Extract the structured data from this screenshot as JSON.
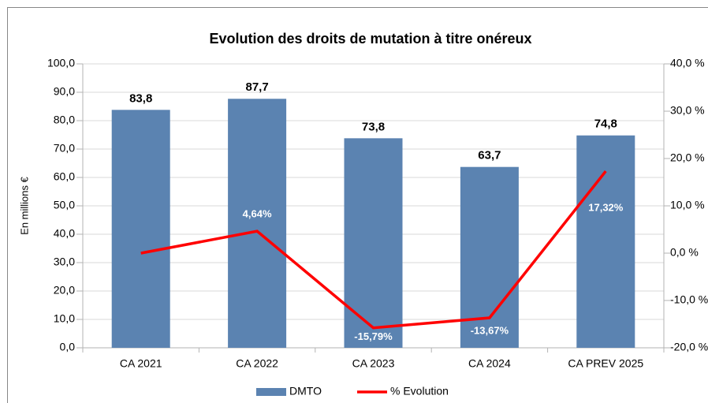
{
  "chart_data": {
    "type": "bar",
    "title": "Evolution des droits de mutation à titre onéreux",
    "y_label": "En millions €",
    "categories": [
      "CA 2021",
      "CA 2022",
      "CA 2023",
      "CA 2024",
      "CA PREV 2025"
    ],
    "series": [
      {
        "name": "DMTO",
        "type": "bar",
        "color": "#5b83b1",
        "values": [
          83.8,
          87.7,
          73.8,
          63.7,
          74.8
        ],
        "value_labels": [
          "83,8",
          "87,7",
          "73,8",
          "63,7",
          "74,8"
        ]
      },
      {
        "name": "% Evolution",
        "type": "line",
        "axis": "y2",
        "color": "#ff0000",
        "values": [
          0,
          4.64,
          -15.79,
          -13.67,
          17.32
        ],
        "value_labels": [
          null,
          "4,64%",
          "-15,79%",
          "-13,67%",
          "17,32%"
        ]
      }
    ],
    "ylim": [
      0,
      100
    ],
    "yticks": [
      {
        "value": 0,
        "label": "0,0"
      },
      {
        "value": 10,
        "label": "10,0"
      },
      {
        "value": 20,
        "label": "20,0"
      },
      {
        "value": 30,
        "label": "30,0"
      },
      {
        "value": 40,
        "label": "40,0"
      },
      {
        "value": 50,
        "label": "50,0"
      },
      {
        "value": 60,
        "label": "60,0"
      },
      {
        "value": 70,
        "label": "70,0"
      },
      {
        "value": 80,
        "label": "80,0"
      },
      {
        "value": 90,
        "label": "90,0"
      },
      {
        "value": 100,
        "label": "100,0"
      }
    ],
    "y2lim": [
      -20,
      40
    ],
    "y2ticks": [
      {
        "value": -20,
        "label": "-20,0 %"
      },
      {
        "value": -10,
        "label": "-10,0 %"
      },
      {
        "value": 0,
        "label": "0,0 %"
      },
      {
        "value": 10,
        "label": "10,0 %"
      },
      {
        "value": 20,
        "label": "20,0 %"
      },
      {
        "value": 30,
        "label": "30,0 %"
      },
      {
        "value": 40,
        "label": "40,0 %"
      }
    ],
    "grid": true,
    "legend": "bottom"
  }
}
